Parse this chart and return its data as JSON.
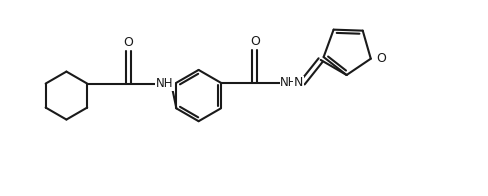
{
  "background_color": "#ffffff",
  "line_color": "#1a1a1a",
  "line_width": 1.5,
  "fig_width": 4.88,
  "fig_height": 1.96,
  "dpi": 100,
  "xlim": [
    0,
    10.0
  ],
  "ylim": [
    0,
    4.0
  ]
}
